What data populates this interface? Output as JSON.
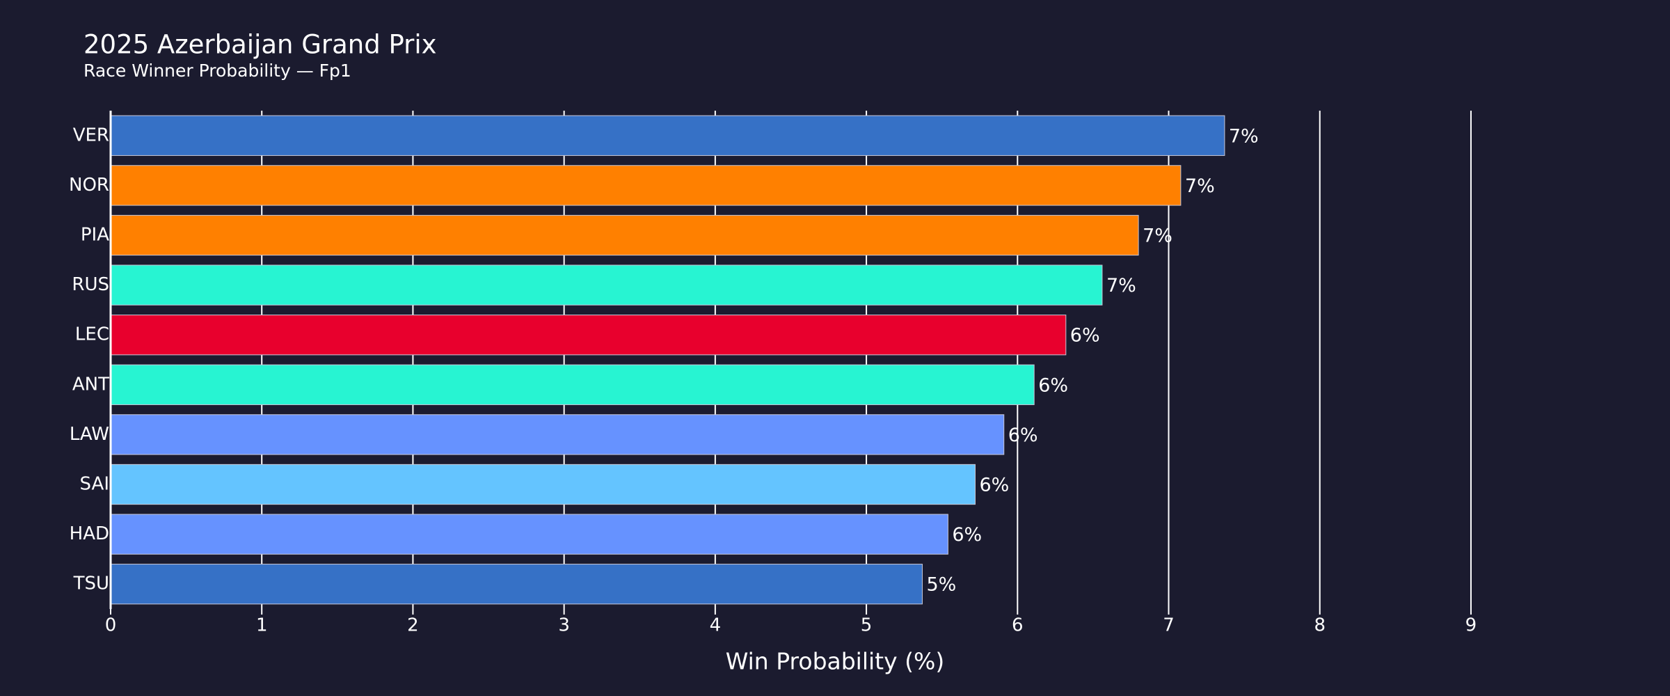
{
  "chart_data": {
    "type": "bar",
    "orientation": "horizontal",
    "title": "2025 Azerbaijan Grand Prix",
    "subtitle": "Race Winner Probability — Fp1",
    "x_label": "Win Probability (%)",
    "categories": [
      "VER",
      "NOR",
      "PIA",
      "RUS",
      "LEC",
      "ANT",
      "LAW",
      "SAI",
      "HAD",
      "TSU"
    ],
    "values": [
      7.37,
      7.08,
      6.8,
      6.56,
      6.32,
      6.11,
      5.91,
      5.72,
      5.54,
      5.37
    ],
    "value_labels": [
      "7%",
      "7%",
      "7%",
      "7%",
      "6%",
      "6%",
      "6%",
      "6%",
      "6%",
      "5%"
    ],
    "colors": [
      "#3671c6",
      "#ff8000",
      "#ff8000",
      "#27f4d2",
      "#e8002d",
      "#27f4d2",
      "#6692ff",
      "#64c4ff",
      "#6692ff",
      "#3671c6"
    ],
    "xlim": [
      0,
      9.7
    ],
    "xticks": [
      0,
      1,
      2,
      3,
      4,
      5,
      6,
      7,
      8,
      9
    ],
    "grid": true
  }
}
